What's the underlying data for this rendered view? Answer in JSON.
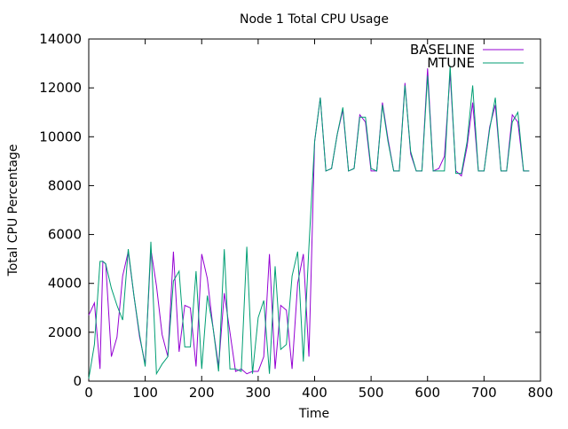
{
  "chart_data": {
    "type": "line",
    "title": "Node 1 Total CPU Usage",
    "xlabel": "Time",
    "ylabel": "Total CPU Percentage",
    "xlim": [
      0,
      800
    ],
    "ylim": [
      0,
      14000
    ],
    "xticks": [
      0,
      100,
      200,
      300,
      400,
      500,
      600,
      700,
      800
    ],
    "yticks": [
      0,
      2000,
      4000,
      6000,
      8000,
      10000,
      12000,
      14000
    ],
    "grid": false,
    "legend_position": "top-right",
    "series": [
      {
        "name": "BASELINE",
        "color": "#9400d3",
        "x": [
          0,
          10,
          20,
          25,
          30,
          40,
          50,
          60,
          70,
          80,
          90,
          100,
          110,
          120,
          130,
          140,
          150,
          160,
          170,
          180,
          190,
          200,
          210,
          220,
          230,
          240,
          250,
          260,
          270,
          280,
          290,
          300,
          310,
          320,
          330,
          340,
          350,
          360,
          370,
          380,
          390,
          400,
          410,
          420,
          430,
          440,
          450,
          460,
          470,
          480,
          490,
          500,
          510,
          520,
          530,
          540,
          550,
          560,
          570,
          580,
          590,
          600,
          610,
          620,
          630,
          640,
          650,
          660,
          670,
          680,
          690,
          700,
          710,
          720,
          730,
          740,
          750,
          760,
          770,
          780
        ],
        "y": [
          2700,
          3200,
          500,
          4900,
          4800,
          1000,
          1800,
          4300,
          5300,
          3500,
          1800,
          700,
          5400,
          3900,
          1900,
          1000,
          5300,
          1200,
          3100,
          3000,
          600,
          5200,
          4200,
          2200,
          600,
          3600,
          2000,
          400,
          500,
          300,
          400,
          400,
          1000,
          5200,
          500,
          3100,
          2900,
          500,
          4000,
          5200,
          1000,
          9800,
          11600,
          8600,
          8700,
          10100,
          11100,
          8600,
          8700,
          10900,
          10600,
          8600,
          8600,
          11400,
          9900,
          8600,
          8600,
          12200,
          9300,
          8600,
          8600,
          12800,
          8600,
          8700,
          9200,
          12600,
          8600,
          8400,
          9600,
          11400,
          8600,
          8600,
          10400,
          11300,
          8600,
          8600,
          10900,
          10600,
          8600,
          8600
        ]
      },
      {
        "name": "MTUNE",
        "color": "#009e73",
        "x": [
          0,
          10,
          20,
          25,
          30,
          40,
          50,
          60,
          70,
          80,
          90,
          100,
          110,
          120,
          130,
          140,
          150,
          160,
          170,
          180,
          190,
          200,
          210,
          220,
          230,
          240,
          250,
          260,
          270,
          280,
          290,
          300,
          310,
          320,
          330,
          340,
          350,
          360,
          370,
          380,
          390,
          400,
          410,
          420,
          430,
          440,
          450,
          460,
          470,
          480,
          490,
          500,
          510,
          520,
          530,
          540,
          550,
          560,
          570,
          580,
          590,
          600,
          610,
          620,
          630,
          640,
          650,
          660,
          670,
          680,
          690,
          700,
          710,
          720,
          730,
          740,
          750,
          760,
          770,
          780
        ],
        "y": [
          100,
          1500,
          4900,
          4900,
          4800,
          3800,
          3100,
          2500,
          5400,
          3500,
          1900,
          600,
          5700,
          300,
          700,
          1000,
          4100,
          4500,
          1400,
          1400,
          4500,
          500,
          3500,
          2200,
          400,
          5400,
          500,
          500,
          400,
          5500,
          300,
          2600,
          3300,
          300,
          4700,
          1300,
          1500,
          4300,
          5300,
          800,
          5500,
          9800,
          11600,
          8600,
          8700,
          10100,
          11200,
          8600,
          8700,
          10800,
          10800,
          8700,
          8600,
          11300,
          9800,
          8600,
          8600,
          12100,
          9400,
          8600,
          8600,
          12500,
          8600,
          8600,
          8600,
          12900,
          8500,
          8500,
          9800,
          12100,
          8600,
          8600,
          10300,
          11600,
          8600,
          8600,
          10600,
          11000,
          8600,
          8600
        ]
      }
    ]
  }
}
